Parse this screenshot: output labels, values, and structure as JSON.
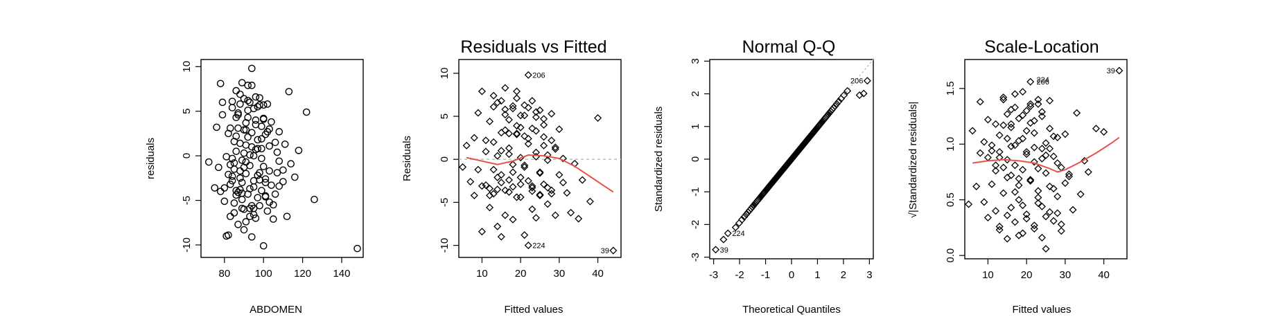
{
  "colors": {
    "points": "#000000",
    "smooth": "#e8514a",
    "refline": "#bdbdbd",
    "frame": "#000000"
  },
  "chart_data": [
    {
      "type": "scatter",
      "title": "",
      "xlabel": "ABDOMEN",
      "ylabel": "residuals",
      "xlim": [
        68,
        151
      ],
      "ylim": [
        -11.4,
        10.8
      ],
      "xticks": [
        80,
        100,
        120,
        140
      ],
      "yticks": [
        -10,
        -5,
        0,
        5,
        10
      ],
      "marker": "circle",
      "x": [
        72,
        75,
        78,
        79,
        80,
        81,
        82,
        82,
        83,
        83,
        84,
        84,
        85,
        85,
        86,
        86,
        86,
        87,
        87,
        88,
        88,
        88,
        89,
        89,
        89,
        90,
        90,
        90,
        91,
        91,
        91,
        92,
        92,
        92,
        93,
        93,
        93,
        94,
        94,
        94,
        95,
        95,
        95,
        96,
        96,
        97,
        97,
        98,
        98,
        99,
        99,
        100,
        100,
        101,
        101,
        102,
        102,
        103,
        103,
        104,
        105,
        106,
        107,
        108,
        108,
        110,
        111,
        112,
        113,
        114,
        116,
        118,
        122,
        126,
        148,
        76,
        77,
        79,
        81,
        83,
        84,
        85,
        86,
        87,
        88,
        89,
        90,
        91,
        92,
        93,
        94,
        95,
        96,
        97,
        98,
        99,
        100,
        101,
        102,
        104,
        106,
        108,
        110,
        78,
        80,
        82,
        84,
        86,
        88,
        90,
        92,
        94,
        96,
        98,
        100,
        103,
        105,
        107,
        85,
        87,
        89,
        91,
        93,
        95,
        97,
        99,
        101,
        83,
        85,
        87,
        89,
        91,
        93,
        95,
        97,
        99,
        101,
        103,
        84,
        86,
        88,
        90,
        92,
        94,
        96,
        98,
        100
      ],
      "y": [
        -0.7,
        -3.6,
        8.1,
        6.0,
        -5.1,
        -9.0,
        -8.9,
        2.5,
        -3.2,
        3.1,
        -2.8,
        5.4,
        -1.5,
        -6.4,
        7.3,
        0.5,
        -3.9,
        4.6,
        -7.7,
        1.4,
        -2.5,
        5.8,
        8.2,
        -0.5,
        -4.9,
        2.9,
        -6.0,
        -8.3,
        3.7,
        1.2,
        -2.0,
        4.3,
        -4.3,
        7.9,
        -1.1,
        6.0,
        -5.9,
        9.8,
        2.6,
        -9.1,
        0.0,
        -3.5,
        5.3,
        3.5,
        -7.0,
        -2.2,
        1.8,
        6.5,
        -5.6,
        0.8,
        -0.3,
        -10.1,
        4.1,
        -3.0,
        2.4,
        5.8,
        -6.2,
        1.1,
        -1.7,
        3.8,
        -5.5,
        -4.3,
        0.4,
        2.7,
        -3.4,
        -1.6,
        1.3,
        -6.8,
        7.2,
        -0.9,
        -2.4,
        0.6,
        4.9,
        -4.9,
        -10.4,
        3.2,
        -1.3,
        4.6,
        -0.1,
        -1.0,
        -2.3,
        1.6,
        -4.4,
        3.1,
        -1.7,
        -3.0,
        0.3,
        -0.7,
        2.1,
        -3.7,
        1.0,
        -2.8,
        4.0,
        0.8,
        -1.9,
        3.3,
        -1.2,
        -4.6,
        2.7,
        -3.3,
        1.5,
        -0.6,
        -2.9,
        -4.0,
        -3.6,
        -2.1,
        -0.3,
        2.2,
        -3.8,
        -1.3,
        6.2,
        -5.6,
        0.7,
        -2.7,
        5.7,
        3.0,
        -7.1,
        -1.9,
        -0.8,
        4.8,
        -4.2,
        2.9,
        0.1,
        -6.6,
        5.5,
        1.9,
        -2.6,
        -6.8,
        -5.3,
        -4.1,
        -5.9,
        -7.4,
        -6.8,
        -5.9,
        -4.7,
        -3.9,
        -4.5,
        -5.2,
        6.1,
        4.3,
        6.9,
        6.4,
        5.1,
        7.9,
        6.6,
        5.7,
        4.2
      ]
    },
    {
      "type": "scatter",
      "title": "Residuals vs Fitted",
      "xlabel": "Fitted values",
      "ylabel": "Residuals",
      "xlim": [
        4,
        46
      ],
      "ylim": [
        -11.4,
        11.6
      ],
      "xticks": [
        10,
        20,
        30,
        40
      ],
      "yticks": [
        -10,
        -5,
        0,
        5,
        10
      ],
      "marker": "diamond",
      "reference_line_y": 0,
      "x": [
        5,
        6,
        7,
        8,
        8,
        9,
        10,
        10,
        11,
        11,
        12,
        12,
        13,
        13,
        13,
        14,
        14,
        14,
        15,
        15,
        15,
        16,
        16,
        16,
        17,
        17,
        17,
        18,
        18,
        18,
        19,
        19,
        19,
        20,
        20,
        20,
        21,
        21,
        21,
        22,
        22,
        22,
        23,
        23,
        23,
        24,
        24,
        24,
        25,
        25,
        25,
        26,
        26,
        26,
        27,
        27,
        28,
        28,
        29,
        29,
        30,
        30,
        31,
        32,
        33,
        34,
        35,
        36,
        38,
        40,
        44,
        9,
        11,
        12,
        14,
        15,
        16,
        17,
        18,
        19,
        20,
        21,
        22,
        23,
        24,
        25,
        26,
        27,
        28,
        29,
        31,
        10,
        12,
        13,
        15,
        17,
        18,
        20,
        22,
        23,
        25,
        27,
        14,
        16,
        19,
        21,
        24,
        26,
        13,
        15,
        18,
        20,
        22,
        24,
        28,
        16,
        17,
        19,
        21,
        23
      ],
      "y": [
        -0.9,
        1.6,
        -2.6,
        2.5,
        -4.2,
        5.4,
        7.9,
        -8.4,
        0.9,
        -3.0,
        4.4,
        -5.6,
        2.0,
        -1.2,
        6.1,
        -7.8,
        0.4,
        -3.5,
        3.1,
        -9.0,
        -1.8,
        5.8,
        8.3,
        -6.5,
        1.3,
        -2.4,
        4.6,
        6.2,
        -0.6,
        -7.0,
        2.9,
        -4.4,
        7.9,
        0.2,
        -2.1,
        3.7,
        -8.8,
        5.1,
        -0.9,
        9.8,
        -10.0,
        2.4,
        -3.3,
        6.8,
        -5.8,
        0.8,
        -6.8,
        3.3,
        -1.5,
        5.7,
        -4.2,
        1.6,
        -2.9,
        4.0,
        -5.2,
        0.5,
        -3.6,
        2.2,
        -6.5,
        1.2,
        -1.8,
        3.5,
        0.1,
        -3.9,
        -6.2,
        -0.5,
        -6.9,
        -2.4,
        -4.9,
        4.8,
        -10.6,
        -1.2,
        2.2,
        -4.2,
        -2.1,
        1.0,
        -3.6,
        0.6,
        -1.5,
        3.0,
        -2.9,
        -0.7,
        1.8,
        -3.1,
        0.3,
        -1.6,
        2.6,
        -0.1,
        -4.0,
        1.4,
        -2.7,
        -3.1,
        -3.4,
        -4.0,
        -2.7,
        -3.8,
        -3.2,
        -4.4,
        -2.5,
        -3.7,
        -4.1,
        -3.3,
        6.6,
        5.2,
        7.1,
        6.3,
        5.5,
        4.7,
        7.4,
        6.8,
        5.9,
        5.1,
        6.0,
        4.9,
        5.3,
        3.4,
        3.0,
        3.9,
        2.7,
        3.6
      ],
      "smooth": {
        "x": [
          6,
          10,
          14,
          18,
          22,
          26,
          30,
          34,
          38,
          42,
          44
        ],
        "y": [
          0.2,
          -0.2,
          -0.6,
          -0.2,
          0.5,
          0.4,
          0.1,
          -0.8,
          -2.0,
          -3.2,
          -3.8
        ]
      },
      "point_labels": [
        {
          "text": "206",
          "x": 22,
          "y": 9.8
        },
        {
          "text": "224",
          "x": 22,
          "y": -10.0
        },
        {
          "text": "39",
          "x": 44,
          "y": -10.6
        }
      ]
    },
    {
      "type": "scatter",
      "title": "Normal Q-Q",
      "xlabel": "Theoretical Quantiles",
      "ylabel": "Standardized residuals",
      "xlim": [
        -3.15,
        3.15
      ],
      "ylim": [
        -3.05,
        3.05
      ],
      "xticks": [
        -3,
        -2,
        -1,
        0,
        1,
        2,
        3
      ],
      "yticks": [
        -3,
        -2,
        -1,
        0,
        1,
        2,
        3
      ],
      "marker": "diamond",
      "qq": {
        "n": 160,
        "y_scale": 0.97,
        "points": [
          [
            -2.92,
            -2.77
          ],
          [
            -2.62,
            -2.46
          ],
          [
            -2.45,
            -2.27
          ],
          [
            2.62,
            1.96
          ],
          [
            2.78,
            2.01
          ],
          [
            2.92,
            2.4
          ]
        ]
      },
      "reference_line": {
        "from": [
          2.0,
          1.95
        ],
        "to": [
          3.15,
          3.05
        ]
      },
      "point_labels": [
        {
          "text": "39",
          "x": -2.92,
          "y": -2.77
        },
        {
          "text": "224",
          "x": -2.45,
          "y": -2.27
        },
        {
          "text": "206",
          "x": 2.92,
          "y": 2.4
        }
      ]
    },
    {
      "type": "scatter",
      "title": "Scale-Location",
      "xlabel": "Fitted values",
      "ylabel": "√|Standardized residuals|",
      "xlim": [
        4,
        46
      ],
      "ylim": [
        -0.03,
        1.76
      ],
      "xticks": [
        10,
        20,
        30,
        40
      ],
      "yticks": [
        0.0,
        0.5,
        1.0,
        1.5
      ],
      "marker": "diamond",
      "x": [
        5,
        6,
        7,
        8,
        8,
        9,
        10,
        10,
        11,
        11,
        12,
        12,
        13,
        13,
        13,
        14,
        14,
        14,
        15,
        15,
        15,
        16,
        16,
        16,
        17,
        17,
        17,
        18,
        18,
        18,
        19,
        19,
        19,
        20,
        20,
        20,
        21,
        21,
        21,
        22,
        22,
        22,
        23,
        23,
        23,
        24,
        24,
        24,
        25,
        25,
        25,
        26,
        26,
        26,
        27,
        27,
        28,
        28,
        29,
        29,
        30,
        30,
        31,
        32,
        33,
        34,
        35,
        36,
        38,
        40,
        44,
        9,
        11,
        12,
        14,
        15,
        16,
        17,
        18,
        19,
        20,
        21,
        22,
        23,
        24,
        25,
        26,
        27,
        28,
        29,
        31,
        10,
        12,
        13,
        15,
        17,
        18,
        20,
        22,
        23,
        25,
        27,
        14,
        16,
        19,
        21,
        24,
        26,
        13,
        15,
        18,
        20,
        22,
        24,
        28,
        16,
        17,
        19,
        21,
        23
      ],
      "y": [
        0.46,
        1.12,
        0.62,
        0.92,
        1.38,
        0.48,
        0.34,
        1.22,
        0.99,
        0.64,
        1.18,
        0.4,
        1.08,
        0.88,
        0.23,
        0.79,
        1.4,
        0.56,
        1.27,
        0.15,
        0.86,
        0.72,
        1.15,
        0.43,
        1.33,
        0.99,
        0.3,
        0.63,
        1.23,
        0.5,
        1.05,
        0.77,
        0.2,
        1.3,
        0.93,
        0.37,
        0.68,
        1.19,
        1.56,
        0.27,
        0.84,
        1.1,
        0.47,
        1.36,
        0.58,
        0.16,
        0.96,
        1.25,
        0.74,
        0.06,
        1.01,
        0.39,
        1.14,
        0.62,
        0.89,
        0.31,
        1.06,
        0.53,
        0.79,
        0.22,
        0.65,
        1.09,
        0.73,
        0.41,
        1.28,
        0.55,
        0.85,
        0.75,
        1.14,
        1.11,
        1.66,
        1.02,
        0.94,
        0.81,
        1.17,
        0.7,
        0.98,
        0.57,
        1.03,
        0.45,
        0.91,
        0.67,
        1.21,
        0.52,
        0.87,
        0.35,
        0.96,
        0.6,
        0.83,
        0.28,
        0.71,
        0.88,
        0.76,
        0.93,
        1.05,
        0.81,
        0.69,
        1.12,
        0.97,
        0.78,
        0.9,
        1.07,
        1.42,
        1.31,
        1.47,
        1.36,
        1.29,
        1.39,
        0.26,
        0.36,
        0.18,
        0.33,
        0.24,
        0.44,
        0.38,
        1.18,
        1.45,
        1.26,
        1.34,
        1.4
      ],
      "smooth": {
        "x": [
          6,
          10,
          14,
          18,
          22,
          26,
          28,
          30,
          34,
          38,
          42,
          44
        ],
        "y": [
          0.83,
          0.85,
          0.86,
          0.85,
          0.83,
          0.78,
          0.75,
          0.77,
          0.84,
          0.92,
          1.01,
          1.06
        ]
      },
      "point_labels": [
        {
          "text": "39",
          "x": 44,
          "y": 1.66
        },
        {
          "text": "224",
          "x": 21.5,
          "y": 1.58
        },
        {
          "text": "206",
          "x": 21.5,
          "y": 1.56
        }
      ]
    }
  ]
}
